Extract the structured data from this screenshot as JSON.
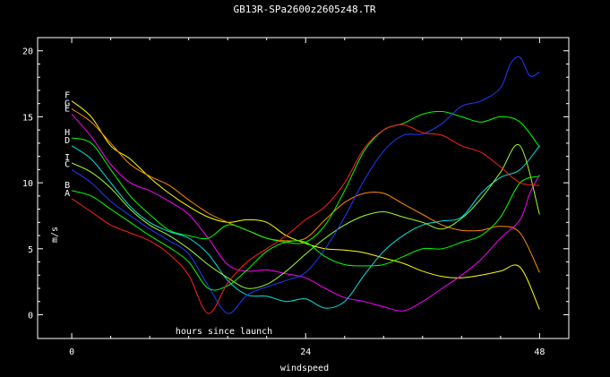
{
  "chart_data": {
    "type": "line",
    "title": "GB13R-SPa2600z2605z48.TR",
    "xlabel": "windspeed",
    "ylabel": "m/s",
    "annotation": "hours since launch",
    "xlim": [
      -3.5,
      51
    ],
    "ylim": [
      -1.8,
      21
    ],
    "x_ticks": [
      0,
      24,
      48
    ],
    "x_tick_labels": [
      "0",
      "24",
      "48"
    ],
    "y_ticks": [
      0,
      5,
      10,
      15,
      20
    ],
    "y_tick_labels": [
      "0",
      "5",
      "10",
      "15",
      "20"
    ],
    "grid": false,
    "legend": "labels-at-line-start",
    "series": [
      {
        "name": "F",
        "color": "#ffff00",
        "points": [
          [
            0,
            16.2
          ],
          [
            2,
            15.0
          ],
          [
            4,
            12.8
          ],
          [
            6,
            11.8
          ],
          [
            8,
            10.4
          ],
          [
            10,
            9.2
          ],
          [
            12,
            8.2
          ],
          [
            14,
            7.4
          ],
          [
            16,
            7.0
          ],
          [
            18,
            7.2
          ],
          [
            20,
            7.0
          ],
          [
            22,
            6.0
          ],
          [
            24,
            5.4
          ],
          [
            26,
            5.0
          ],
          [
            28,
            4.9
          ],
          [
            30,
            4.7
          ],
          [
            32,
            4.3
          ],
          [
            34,
            3.9
          ],
          [
            36,
            3.3
          ],
          [
            38,
            2.9
          ],
          [
            40,
            2.8
          ],
          [
            42,
            3.0
          ],
          [
            44,
            3.3
          ],
          [
            46,
            3.6
          ],
          [
            48,
            0.4
          ]
        ]
      },
      {
        "name": "G",
        "color": "#ff8c00",
        "points": [
          [
            0,
            15.6
          ],
          [
            2,
            14.6
          ],
          [
            4,
            13.0
          ],
          [
            6,
            11.4
          ],
          [
            8,
            10.5
          ],
          [
            10,
            9.8
          ],
          [
            12,
            8.7
          ],
          [
            14,
            7.7
          ],
          [
            16,
            7.0
          ],
          [
            18,
            6.4
          ],
          [
            20,
            5.8
          ],
          [
            22,
            5.6
          ],
          [
            24,
            5.8
          ],
          [
            26,
            7.2
          ],
          [
            28,
            8.5
          ],
          [
            30,
            9.2
          ],
          [
            32,
            9.2
          ],
          [
            34,
            8.4
          ],
          [
            36,
            7.6
          ],
          [
            38,
            6.8
          ],
          [
            40,
            6.4
          ],
          [
            42,
            6.4
          ],
          [
            44,
            6.7
          ],
          [
            46,
            6.2
          ],
          [
            48,
            3.2
          ]
        ]
      },
      {
        "name": "E",
        "color": "#ff00ff",
        "points": [
          [
            0,
            15.2
          ],
          [
            2,
            13.5
          ],
          [
            4,
            11.4
          ],
          [
            6,
            10.0
          ],
          [
            8,
            9.4
          ],
          [
            10,
            8.6
          ],
          [
            12,
            7.6
          ],
          [
            14,
            5.8
          ],
          [
            16,
            3.8
          ],
          [
            18,
            3.3
          ],
          [
            20,
            3.4
          ],
          [
            22,
            3.1
          ],
          [
            24,
            2.8
          ],
          [
            26,
            2.0
          ],
          [
            28,
            1.3
          ],
          [
            30,
            1.0
          ],
          [
            32,
            0.6
          ],
          [
            34,
            0.3
          ],
          [
            36,
            1.0
          ],
          [
            38,
            2.0
          ],
          [
            40,
            3.0
          ],
          [
            42,
            4.2
          ],
          [
            44,
            5.8
          ],
          [
            46,
            7.2
          ],
          [
            47,
            9.2
          ],
          [
            48,
            10.6
          ]
        ]
      },
      {
        "name": "H",
        "color": "#00ff00",
        "points": [
          [
            0,
            13.4
          ],
          [
            2,
            13.0
          ],
          [
            4,
            11.0
          ],
          [
            6,
            9.0
          ],
          [
            8,
            7.6
          ],
          [
            10,
            6.4
          ],
          [
            12,
            6.0
          ],
          [
            14,
            5.8
          ],
          [
            16,
            6.8
          ],
          [
            18,
            6.4
          ],
          [
            20,
            5.8
          ],
          [
            22,
            5.5
          ],
          [
            24,
            5.5
          ],
          [
            26,
            6.8
          ],
          [
            28,
            9.4
          ],
          [
            30,
            12.4
          ],
          [
            32,
            14.0
          ],
          [
            34,
            14.5
          ],
          [
            36,
            15.2
          ],
          [
            38,
            15.4
          ],
          [
            40,
            15.0
          ],
          [
            42,
            14.6
          ],
          [
            44,
            15.0
          ],
          [
            46,
            14.6
          ],
          [
            48,
            12.7
          ]
        ]
      },
      {
        "name": "D",
        "color": "#00e5e5",
        "points": [
          [
            0,
            12.8
          ],
          [
            2,
            11.8
          ],
          [
            4,
            10.0
          ],
          [
            6,
            8.2
          ],
          [
            8,
            7.0
          ],
          [
            10,
            6.3
          ],
          [
            12,
            5.8
          ],
          [
            14,
            4.6
          ],
          [
            16,
            2.6
          ],
          [
            18,
            1.5
          ],
          [
            20,
            1.4
          ],
          [
            22,
            1.0
          ],
          [
            24,
            1.2
          ],
          [
            26,
            0.5
          ],
          [
            28,
            1.0
          ],
          [
            30,
            3.0
          ],
          [
            32,
            4.8
          ],
          [
            34,
            6.0
          ],
          [
            36,
            6.8
          ],
          [
            38,
            7.1
          ],
          [
            40,
            7.4
          ],
          [
            42,
            9.2
          ],
          [
            44,
            10.4
          ],
          [
            46,
            11.0
          ],
          [
            48,
            12.8
          ]
        ]
      },
      {
        "name": "I",
        "color": "#9aff2e",
        "points": [
          [
            0,
            11.5
          ],
          [
            2,
            10.8
          ],
          [
            4,
            9.6
          ],
          [
            6,
            8.0
          ],
          [
            8,
            6.8
          ],
          [
            10,
            6.0
          ],
          [
            12,
            5.0
          ],
          [
            14,
            3.8
          ],
          [
            16,
            2.8
          ],
          [
            18,
            2.0
          ],
          [
            20,
            2.3
          ],
          [
            22,
            3.3
          ],
          [
            24,
            4.6
          ],
          [
            26,
            5.8
          ],
          [
            28,
            6.8
          ],
          [
            30,
            7.5
          ],
          [
            32,
            7.8
          ],
          [
            34,
            7.4
          ],
          [
            36,
            7.0
          ],
          [
            38,
            6.5
          ],
          [
            40,
            7.3
          ],
          [
            42,
            8.8
          ],
          [
            44,
            10.8
          ],
          [
            46,
            12.8
          ],
          [
            48,
            7.6
          ]
        ]
      },
      {
        "name": "C",
        "color": "#1e3cff",
        "points": [
          [
            0,
            11.0
          ],
          [
            2,
            10.0
          ],
          [
            4,
            8.6
          ],
          [
            6,
            7.5
          ],
          [
            8,
            6.5
          ],
          [
            10,
            5.6
          ],
          [
            12,
            4.6
          ],
          [
            14,
            2.2
          ],
          [
            16,
            0.1
          ],
          [
            18,
            1.5
          ],
          [
            20,
            2.1
          ],
          [
            22,
            2.6
          ],
          [
            24,
            3.2
          ],
          [
            26,
            5.0
          ],
          [
            28,
            7.4
          ],
          [
            30,
            10.2
          ],
          [
            32,
            12.4
          ],
          [
            34,
            13.6
          ],
          [
            36,
            13.7
          ],
          [
            38,
            14.5
          ],
          [
            40,
            15.8
          ],
          [
            42,
            16.2
          ],
          [
            44,
            17.2
          ],
          [
            45,
            19.0
          ],
          [
            46,
            19.5
          ],
          [
            47,
            18.1
          ],
          [
            48,
            18.4
          ]
        ]
      },
      {
        "name": "B",
        "color": "#00ff00",
        "points": [
          [
            0,
            9.4
          ],
          [
            2,
            9.0
          ],
          [
            4,
            8.0
          ],
          [
            6,
            7.0
          ],
          [
            8,
            6.0
          ],
          [
            10,
            5.1
          ],
          [
            12,
            4.0
          ],
          [
            14,
            2.0
          ],
          [
            16,
            2.2
          ],
          [
            18,
            3.4
          ],
          [
            20,
            4.8
          ],
          [
            22,
            5.5
          ],
          [
            24,
            5.5
          ],
          [
            26,
            4.4
          ],
          [
            28,
            3.8
          ],
          [
            30,
            3.7
          ],
          [
            32,
            3.8
          ],
          [
            34,
            4.4
          ],
          [
            36,
            5.0
          ],
          [
            38,
            5.0
          ],
          [
            40,
            5.5
          ],
          [
            42,
            6.0
          ],
          [
            44,
            7.4
          ],
          [
            46,
            10.0
          ],
          [
            48,
            10.5
          ]
        ]
      },
      {
        "name": "A",
        "color": "#ff2020",
        "points": [
          [
            0,
            8.8
          ],
          [
            2,
            7.8
          ],
          [
            4,
            6.8
          ],
          [
            6,
            6.2
          ],
          [
            8,
            5.6
          ],
          [
            10,
            4.6
          ],
          [
            12,
            3.0
          ],
          [
            14,
            0.1
          ],
          [
            16,
            2.4
          ],
          [
            18,
            4.0
          ],
          [
            20,
            5.0
          ],
          [
            22,
            6.0
          ],
          [
            24,
            7.2
          ],
          [
            26,
            8.2
          ],
          [
            28,
            10.0
          ],
          [
            30,
            12.6
          ],
          [
            32,
            14.0
          ],
          [
            34,
            14.4
          ],
          [
            36,
            13.8
          ],
          [
            38,
            13.6
          ],
          [
            40,
            12.8
          ],
          [
            42,
            12.3
          ],
          [
            44,
            11.2
          ],
          [
            46,
            10.0
          ],
          [
            48,
            9.8
          ]
        ]
      }
    ]
  }
}
